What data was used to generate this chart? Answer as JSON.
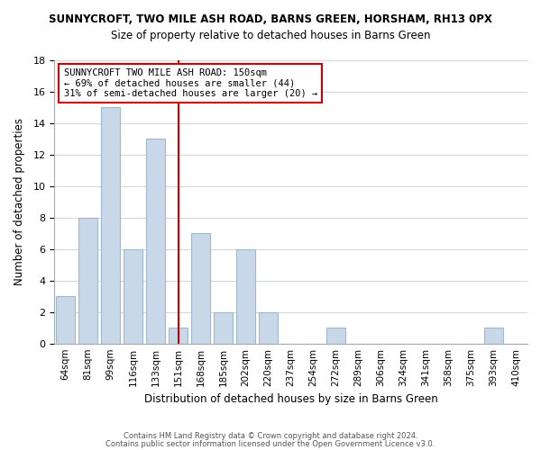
{
  "title": "SUNNYCROFT, TWO MILE ASH ROAD, BARNS GREEN, HORSHAM, RH13 0PX",
  "subtitle": "Size of property relative to detached houses in Barns Green",
  "xlabel": "Distribution of detached houses by size in Barns Green",
  "ylabel": "Number of detached properties",
  "footer_line1": "Contains HM Land Registry data © Crown copyright and database right 2024.",
  "footer_line2": "Contains public sector information licensed under the Open Government Licence v3.0.",
  "bar_labels": [
    "64sqm",
    "81sqm",
    "99sqm",
    "116sqm",
    "133sqm",
    "151sqm",
    "168sqm",
    "185sqm",
    "202sqm",
    "220sqm",
    "237sqm",
    "254sqm",
    "272sqm",
    "289sqm",
    "306sqm",
    "324sqm",
    "341sqm",
    "358sqm",
    "375sqm",
    "393sqm",
    "410sqm"
  ],
  "bar_values": [
    3,
    8,
    15,
    6,
    13,
    1,
    7,
    2,
    6,
    2,
    0,
    0,
    1,
    0,
    0,
    0,
    0,
    0,
    0,
    1,
    0
  ],
  "bar_color": "#c8d8e8",
  "bar_edge_color": "#a0b8cc",
  "vline_x_index": 5,
  "vline_color": "#cc0000",
  "ylim": [
    0,
    18
  ],
  "yticks": [
    0,
    2,
    4,
    6,
    8,
    10,
    12,
    14,
    16,
    18
  ],
  "annotation_title": "SUNNYCROFT TWO MILE ASH ROAD: 150sqm",
  "annotation_line2": "← 69% of detached houses are smaller (44)",
  "annotation_line3": "31% of semi-detached houses are larger (20) →",
  "annotation_box_color": "#ffffff",
  "annotation_box_edge": "#cc0000",
  "background_color": "#ffffff",
  "grid_color": "#d0d8e0"
}
